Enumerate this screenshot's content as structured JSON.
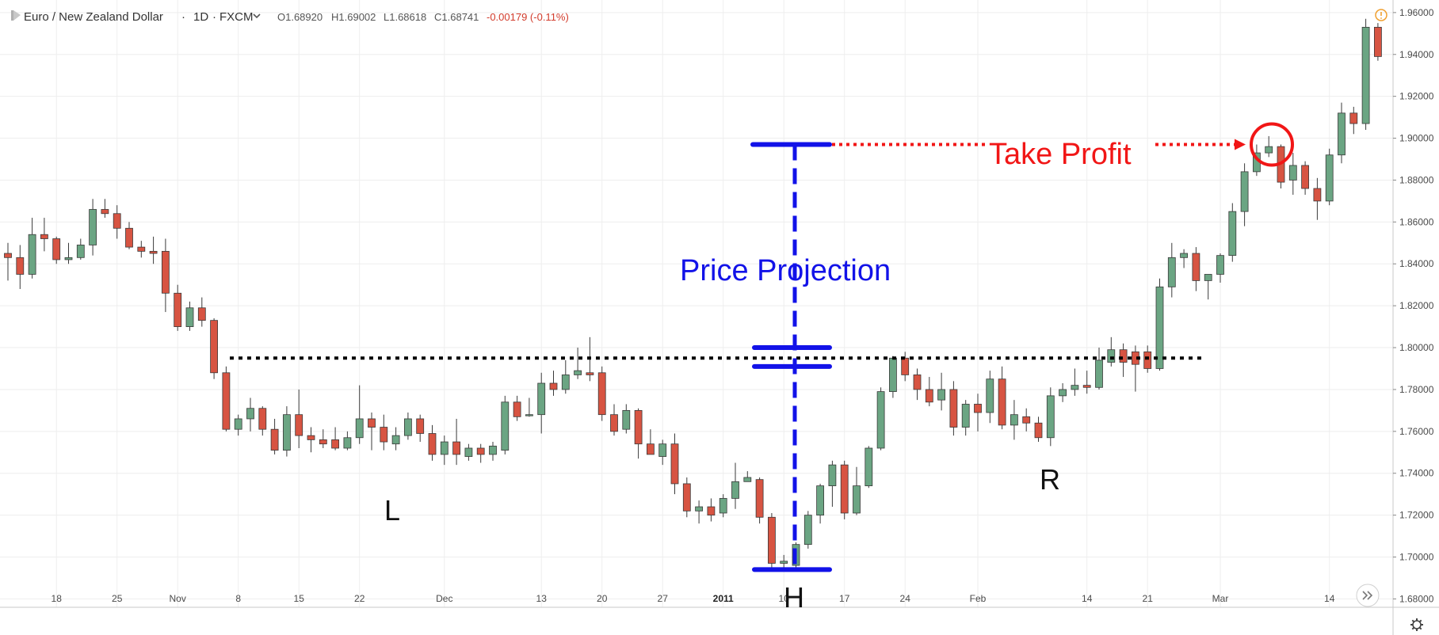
{
  "header": {
    "symbol": "Euro / New Zealand Dollar",
    "interval": "1D",
    "exchange": "FXCM",
    "open": "O1.68920",
    "high": "H1.69002",
    "low": "L1.68618",
    "close": "C1.68741",
    "change": "-0.00179 (-0.11%)"
  },
  "icons": {
    "symbol_marker": "flag-icon",
    "dropdown": "chevron-down-icon",
    "alert": "warning-icon",
    "scroll": "double-chevron-right-icon",
    "settings": "gear-icon"
  },
  "colors": {
    "up_candle": "#6ba583",
    "down_candle": "#d75442",
    "projection": "#1212e8",
    "take_profit": "#f11616",
    "neckline": "#000000"
  },
  "chart_data": {
    "type": "candlestick",
    "ylim": [
      1.676,
      1.966
    ],
    "ytick_values": [
      1.68,
      1.7,
      1.72,
      1.74,
      1.76,
      1.78,
      1.8,
      1.82,
      1.84,
      1.86,
      1.88,
      1.9,
      1.92,
      1.94,
      1.96
    ],
    "yticks": [
      "1.68000",
      "1.70000",
      "1.72000",
      "1.74000",
      "1.76000",
      "1.78000",
      "1.80000",
      "1.82000",
      "1.84000",
      "1.86000",
      "1.88000",
      "1.90000",
      "1.92000",
      "1.94000",
      "1.96000"
    ],
    "xticks": [
      {
        "label": "18",
        "index": 4
      },
      {
        "label": "25",
        "index": 9
      },
      {
        "label": "Nov",
        "index": 14
      },
      {
        "label": "8",
        "index": 19
      },
      {
        "label": "15",
        "index": 24
      },
      {
        "label": "22",
        "index": 29
      },
      {
        "label": "Dec",
        "index": 36
      },
      {
        "label": "13",
        "index": 44
      },
      {
        "label": "20",
        "index": 49
      },
      {
        "label": "27",
        "index": 54
      },
      {
        "label": "2011",
        "index": 59
      },
      {
        "label": "10",
        "index": 64
      },
      {
        "label": "17",
        "index": 69
      },
      {
        "label": "24",
        "index": 74
      },
      {
        "label": "Feb",
        "index": 80
      },
      {
        "label": "14",
        "index": 89
      },
      {
        "label": "21",
        "index": 94
      },
      {
        "label": "Mar",
        "index": 100
      },
      {
        "label": "14",
        "index": 109
      }
    ],
    "grid": true,
    "candles": [
      [
        1.845,
        1.85,
        1.832,
        1.843
      ],
      [
        1.843,
        1.849,
        1.828,
        1.835
      ],
      [
        1.835,
        1.862,
        1.833,
        1.854
      ],
      [
        1.854,
        1.862,
        1.846,
        1.852
      ],
      [
        1.852,
        1.853,
        1.84,
        1.842
      ],
      [
        1.842,
        1.85,
        1.84,
        1.843
      ],
      [
        1.843,
        1.852,
        1.842,
        1.849
      ],
      [
        1.849,
        1.871,
        1.844,
        1.866
      ],
      [
        1.866,
        1.871,
        1.862,
        1.864
      ],
      [
        1.864,
        1.868,
        1.852,
        1.857
      ],
      [
        1.857,
        1.86,
        1.847,
        1.848
      ],
      [
        1.848,
        1.851,
        1.843,
        1.846
      ],
      [
        1.846,
        1.853,
        1.84,
        1.845
      ],
      [
        1.846,
        1.852,
        1.817,
        1.826
      ],
      [
        1.826,
        1.83,
        1.808,
        1.81
      ],
      [
        1.81,
        1.822,
        1.808,
        1.819
      ],
      [
        1.819,
        1.824,
        1.81,
        1.813
      ],
      [
        1.813,
        1.814,
        1.785,
        1.788
      ],
      [
        1.788,
        1.791,
        1.76,
        1.761
      ],
      [
        1.761,
        1.768,
        1.758,
        1.766
      ],
      [
        1.766,
        1.776,
        1.76,
        1.771
      ],
      [
        1.771,
        1.772,
        1.758,
        1.761
      ],
      [
        1.761,
        1.766,
        1.749,
        1.751
      ],
      [
        1.751,
        1.772,
        1.748,
        1.768
      ],
      [
        1.768,
        1.78,
        1.752,
        1.758
      ],
      [
        1.758,
        1.762,
        1.75,
        1.756
      ],
      [
        1.756,
        1.761,
        1.752,
        1.754
      ],
      [
        1.756,
        1.762,
        1.751,
        1.752
      ],
      [
        1.752,
        1.76,
        1.751,
        1.757
      ],
      [
        1.757,
        1.782,
        1.754,
        1.766
      ],
      [
        1.766,
        1.769,
        1.751,
        1.762
      ],
      [
        1.762,
        1.768,
        1.751,
        1.755
      ],
      [
        1.754,
        1.762,
        1.751,
        1.758
      ],
      [
        1.758,
        1.769,
        1.756,
        1.766
      ],
      [
        1.766,
        1.768,
        1.755,
        1.759
      ],
      [
        1.759,
        1.763,
        1.746,
        1.749
      ],
      [
        1.749,
        1.758,
        1.744,
        1.755
      ],
      [
        1.755,
        1.766,
        1.744,
        1.749
      ],
      [
        1.748,
        1.754,
        1.746,
        1.752
      ],
      [
        1.752,
        1.754,
        1.745,
        1.749
      ],
      [
        1.749,
        1.755,
        1.746,
        1.753
      ],
      [
        1.751,
        1.777,
        1.749,
        1.774
      ],
      [
        1.774,
        1.777,
        1.765,
        1.767
      ],
      [
        1.768,
        1.776,
        1.767,
        1.768
      ],
      [
        1.768,
        1.788,
        1.759,
        1.783
      ],
      [
        1.783,
        1.789,
        1.777,
        1.78
      ],
      [
        1.78,
        1.794,
        1.778,
        1.787
      ],
      [
        1.787,
        1.8,
        1.785,
        1.789
      ],
      [
        1.788,
        1.805,
        1.784,
        1.787
      ],
      [
        1.788,
        1.791,
        1.765,
        1.768
      ],
      [
        1.768,
        1.773,
        1.758,
        1.76
      ],
      [
        1.761,
        1.773,
        1.759,
        1.77
      ],
      [
        1.77,
        1.771,
        1.747,
        1.754
      ],
      [
        1.754,
        1.761,
        1.751,
        1.749
      ],
      [
        1.748,
        1.756,
        1.744,
        1.754
      ],
      [
        1.754,
        1.759,
        1.73,
        1.735
      ],
      [
        1.735,
        1.738,
        1.719,
        1.722
      ],
      [
        1.722,
        1.727,
        1.716,
        1.724
      ],
      [
        1.724,
        1.728,
        1.717,
        1.72
      ],
      [
        1.721,
        1.73,
        1.719,
        1.728
      ],
      [
        1.728,
        1.745,
        1.723,
        1.736
      ],
      [
        1.736,
        1.741,
        1.736,
        1.738
      ],
      [
        1.737,
        1.738,
        1.716,
        1.719
      ],
      [
        1.719,
        1.721,
        1.695,
        1.697
      ],
      [
        1.697,
        1.701,
        1.694,
        1.698
      ],
      [
        1.696,
        1.707,
        1.694,
        1.706
      ],
      [
        1.706,
        1.722,
        1.704,
        1.72
      ],
      [
        1.72,
        1.735,
        1.716,
        1.734
      ],
      [
        1.734,
        1.746,
        1.724,
        1.744
      ],
      [
        1.744,
        1.746,
        1.718,
        1.721
      ],
      [
        1.721,
        1.743,
        1.72,
        1.734
      ],
      [
        1.734,
        1.753,
        1.733,
        1.752
      ],
      [
        1.752,
        1.781,
        1.751,
        1.779
      ],
      [
        1.779,
        1.796,
        1.776,
        1.795
      ],
      [
        1.795,
        1.798,
        1.784,
        1.787
      ],
      [
        1.787,
        1.79,
        1.775,
        1.78
      ],
      [
        1.78,
        1.786,
        1.772,
        1.774
      ],
      [
        1.775,
        1.788,
        1.77,
        1.78
      ],
      [
        1.78,
        1.784,
        1.758,
        1.762
      ],
      [
        1.762,
        1.775,
        1.758,
        1.773
      ],
      [
        1.773,
        1.778,
        1.76,
        1.769
      ],
      [
        1.769,
        1.789,
        1.764,
        1.785
      ],
      [
        1.785,
        1.791,
        1.761,
        1.763
      ],
      [
        1.763,
        1.775,
        1.756,
        1.768
      ],
      [
        1.767,
        1.771,
        1.76,
        1.764
      ],
      [
        1.764,
        1.767,
        1.755,
        1.757
      ],
      [
        1.757,
        1.781,
        1.753,
        1.777
      ],
      [
        1.777,
        1.783,
        1.774,
        1.78
      ],
      [
        1.78,
        1.79,
        1.777,
        1.782
      ],
      [
        1.782,
        1.789,
        1.778,
        1.781
      ],
      [
        1.781,
        1.8,
        1.78,
        1.794
      ],
      [
        1.793,
        1.805,
        1.791,
        1.799
      ],
      [
        1.799,
        1.802,
        1.786,
        1.793
      ],
      [
        1.798,
        1.801,
        1.779,
        1.792
      ],
      [
        1.798,
        1.801,
        1.788,
        1.79
      ],
      [
        1.79,
        1.833,
        1.789,
        1.829
      ],
      [
        1.829,
        1.85,
        1.824,
        1.843
      ],
      [
        1.843,
        1.847,
        1.838,
        1.845
      ],
      [
        1.845,
        1.848,
        1.827,
        1.832
      ],
      [
        1.832,
        1.835,
        1.823,
        1.835
      ],
      [
        1.835,
        1.845,
        1.831,
        1.844
      ],
      [
        1.844,
        1.869,
        1.841,
        1.865
      ],
      [
        1.865,
        1.888,
        1.858,
        1.884
      ],
      [
        1.884,
        1.897,
        1.882,
        1.893
      ],
      [
        1.893,
        1.901,
        1.891,
        1.896
      ],
      [
        1.896,
        1.897,
        1.876,
        1.879
      ],
      [
        1.88,
        1.893,
        1.873,
        1.887
      ],
      [
        1.887,
        1.889,
        1.873,
        1.876
      ],
      [
        1.876,
        1.881,
        1.861,
        1.87
      ],
      [
        1.87,
        1.895,
        1.868,
        1.892
      ],
      [
        1.892,
        1.917,
        1.888,
        1.912
      ],
      [
        1.912,
        1.915,
        1.902,
        1.907
      ],
      [
        1.907,
        1.957,
        1.904,
        1.953
      ],
      [
        1.953,
        1.955,
        1.937,
        1.939
      ]
    ],
    "annotations": {
      "projection_label": "Price Projection",
      "take_profit_label": "Take Profit",
      "left_shoulder": "L",
      "head": "H",
      "right_shoulder": "R",
      "neckline_price": 1.795,
      "projection_top_price": 1.897,
      "projection_mid_price": 1.8,
      "projection_mid2_price": 1.791,
      "projection_bottom_price": 1.694
    }
  }
}
